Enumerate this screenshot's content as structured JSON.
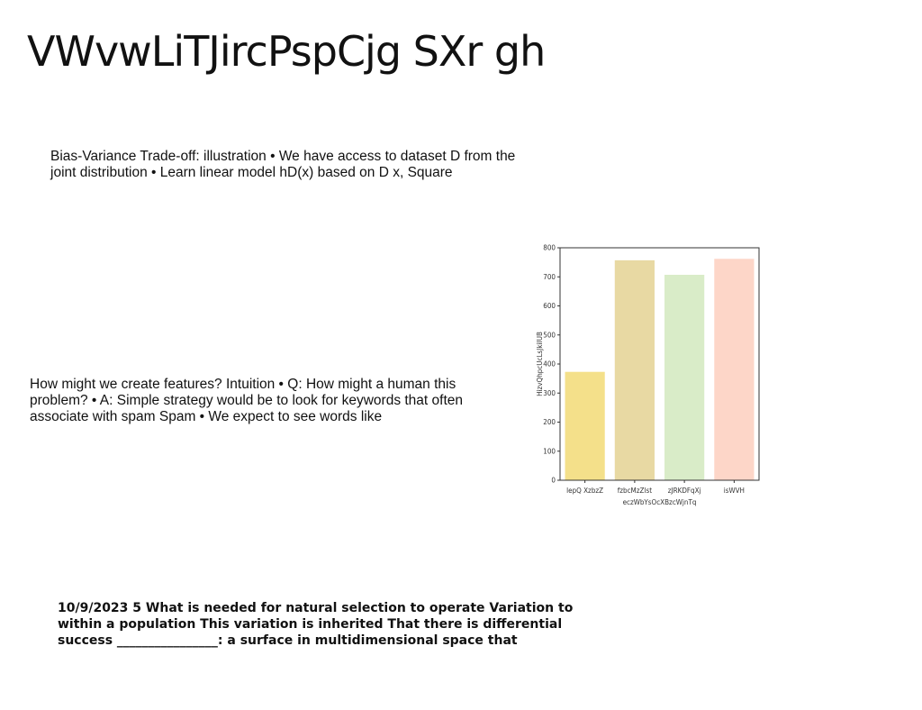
{
  "slide": {
    "title": "VWvwLiTJircPspCjg SXr gh",
    "paragraph_1": "Bias-Variance Trade-off: illustration • We have access to dataset D from the joint distribution • Learn linear model hD(x) based on D x, Square",
    "paragraph_2": "How might we create features? Intuition • Q: How might a human this problem? • A: Simple strategy would be to look for keywords that often associate with spam Spam • We expect to see words like",
    "paragraph_3": "10/9/2023 5 What is needed for natural selection to operate Variation to within a population This variation is inherited That there is differential success ________________: a surface in multidimensional space that"
  },
  "chart_data": {
    "type": "bar",
    "categories": [
      "lepQ XzbzZ",
      "fzbcMzZlst",
      "zJRKDFqXj",
      "isWVH"
    ],
    "values": [
      373,
      757,
      707,
      762
    ],
    "colors": [
      "#f4e08a",
      "#e8d9a3",
      "#d9ecc8",
      "#fdd6c8"
    ],
    "xlabel": "eczWbYsOcXBzcWjnTq",
    "ylabel": "HizvQhpcUcLsJkiIUB",
    "ylim": [
      0,
      800
    ],
    "yticks": [
      0,
      100,
      200,
      300,
      400,
      500,
      600,
      700,
      800
    ],
    "grid": false,
    "title": ""
  }
}
